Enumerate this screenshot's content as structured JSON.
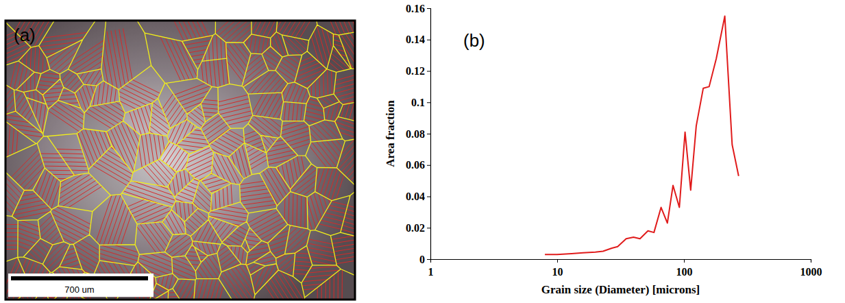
{
  "image_panel": {
    "label": "(a)",
    "scale_bar": "700 um"
  },
  "chart_data": {
    "type": "line",
    "panel_label": "(b)",
    "x_label": "Grain size (Diameter) [microns]",
    "y_label": "Area fraction",
    "x": [
      8,
      10,
      13,
      16,
      20,
      23,
      27,
      30,
      35,
      40,
      45,
      52,
      58,
      66,
      74,
      82,
      92,
      102,
      113,
      125,
      142,
      158,
      180,
      210,
      240,
      270
    ],
    "values": [
      0.003,
      0.003,
      0.0035,
      0.004,
      0.0045,
      0.005,
      0.007,
      0.008,
      0.013,
      0.014,
      0.013,
      0.018,
      0.017,
      0.033,
      0.023,
      0.047,
      0.033,
      0.081,
      0.044,
      0.085,
      0.109,
      0.11,
      0.128,
      0.155,
      0.073,
      0.053
    ],
    "color": "#e01b1b",
    "log": "x",
    "xlim": [
      1,
      1000
    ],
    "xticks": [
      1,
      10,
      100,
      1000
    ],
    "ylim": [
      0,
      0.16
    ],
    "yticks": [
      0,
      0.02,
      0.04,
      0.06,
      0.08,
      0.1,
      0.12,
      0.14,
      0.16
    ],
    "grid": false
  }
}
